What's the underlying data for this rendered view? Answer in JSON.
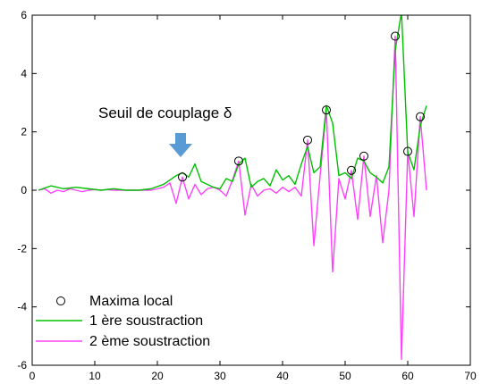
{
  "chart_data": {
    "type": "line",
    "title": "",
    "xlabel": "",
    "ylabel": "",
    "xlim": [
      0,
      70
    ],
    "ylim": [
      -6,
      6
    ],
    "xticks": [
      "0",
      "10",
      "20",
      "30",
      "40",
      "50",
      "60",
      "70"
    ],
    "yticks": [
      "-6",
      "-4",
      "-2",
      "0",
      "2",
      "4",
      "6"
    ],
    "grid": false,
    "legend": "bottom-left",
    "annotation": {
      "text": "Seuil de couplage δ",
      "arrow_at": [
        24,
        0.6
      ],
      "color": "#5b9bd5"
    },
    "series": [
      {
        "name": "Maxima local",
        "style": "marker-circle",
        "color": "#000000",
        "x": [
          24,
          33,
          44,
          47,
          51,
          53,
          58,
          60,
          62
        ],
        "y": [
          0.45,
          1.0,
          1.72,
          2.75,
          0.68,
          1.17,
          5.28,
          1.33,
          2.52
        ]
      },
      {
        "name": "1 ère soustraction",
        "style": "line",
        "color": "#00c000",
        "x": [
          1,
          3,
          5,
          7,
          9,
          11,
          13,
          15,
          17,
          19,
          21,
          23,
          24,
          25,
          26,
          27,
          28,
          29,
          30,
          31,
          32,
          33,
          34,
          35,
          36,
          37,
          38,
          39,
          40,
          41,
          42,
          43,
          44,
          45,
          46,
          47,
          48,
          49,
          50,
          51,
          52,
          53,
          54,
          55,
          56,
          57,
          58,
          59,
          60,
          61,
          62,
          63
        ],
        "y": [
          0.0,
          0.15,
          0.05,
          0.1,
          0.05,
          0.0,
          0.05,
          0.0,
          0.0,
          0.05,
          0.2,
          0.5,
          0.6,
          0.45,
          0.9,
          0.3,
          0.2,
          0.1,
          0.05,
          0.4,
          0.3,
          0.9,
          1.1,
          0.1,
          0.3,
          0.4,
          0.15,
          0.7,
          0.35,
          0.5,
          0.2,
          0.9,
          1.5,
          0.6,
          0.8,
          2.9,
          2.3,
          0.5,
          0.6,
          0.4,
          1.1,
          1.0,
          0.6,
          0.45,
          0.25,
          0.8,
          4.8,
          6.1,
          1.3,
          0.7,
          2.2,
          2.9
        ]
      },
      {
        "name": "2 ème soustraction",
        "style": "line",
        "color": "#ff40ff",
        "x": [
          1,
          2,
          3,
          4,
          5,
          6,
          7,
          8,
          9,
          10,
          11,
          12,
          13,
          14,
          15,
          16,
          17,
          18,
          19,
          20,
          21,
          22,
          23,
          24,
          25,
          26,
          27,
          28,
          29,
          30,
          31,
          32,
          33,
          34,
          35,
          36,
          37,
          38,
          39,
          40,
          41,
          42,
          43,
          44,
          45,
          46,
          47,
          48,
          49,
          50,
          51,
          52,
          53,
          54,
          55,
          56,
          57,
          58,
          59,
          60,
          61,
          62,
          63
        ],
        "y": [
          0.0,
          0.05,
          -0.1,
          0.0,
          -0.05,
          0.05,
          0.0,
          -0.05,
          0.0,
          0.02,
          0.0,
          0.02,
          0.0,
          0.0,
          0.0,
          0.0,
          0.0,
          0.0,
          0.0,
          0.05,
          0.1,
          0.25,
          -0.45,
          0.45,
          -0.3,
          0.2,
          -0.15,
          0.05,
          0.1,
          0.0,
          -0.2,
          0.35,
          1.0,
          -0.85,
          0.2,
          -0.2,
          0.0,
          0.05,
          -0.1,
          0.1,
          -0.05,
          0.1,
          -0.2,
          1.72,
          -1.9,
          0.5,
          2.75,
          -2.8,
          0.4,
          -0.3,
          0.68,
          -1.0,
          1.17,
          -0.9,
          0.5,
          -1.8,
          0.0,
          5.28,
          -5.8,
          1.33,
          -0.9,
          2.52,
          0.0
        ]
      }
    ]
  }
}
